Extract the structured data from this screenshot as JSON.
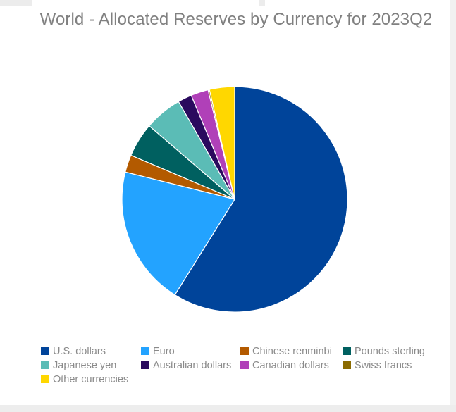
{
  "chart_data": {
    "type": "pie",
    "title": "World - Allocated Reserves by Currency for 2023Q2",
    "slices": [
      {
        "name": "U.S. dollars",
        "value": 58.9,
        "color": "#00449a"
      },
      {
        "name": "Euro",
        "value": 20.0,
        "color": "#23a3ff"
      },
      {
        "name": "Chinese renminbi",
        "value": 2.5,
        "color": "#b35a00"
      },
      {
        "name": "Pounds sterling",
        "value": 4.9,
        "color": "#006060"
      },
      {
        "name": "Japanese yen",
        "value": 5.4,
        "color": "#5bbcb6"
      },
      {
        "name": "Australian dollars",
        "value": 2.0,
        "color": "#2a0a5e"
      },
      {
        "name": "Canadian dollars",
        "value": 2.5,
        "color": "#b040b8"
      },
      {
        "name": "Swiss francs",
        "value": 0.2,
        "color": "#8b6b00"
      },
      {
        "name": "Other currencies",
        "value": 3.6,
        "color": "#ffd700"
      }
    ],
    "legend_placement": "bottom"
  }
}
